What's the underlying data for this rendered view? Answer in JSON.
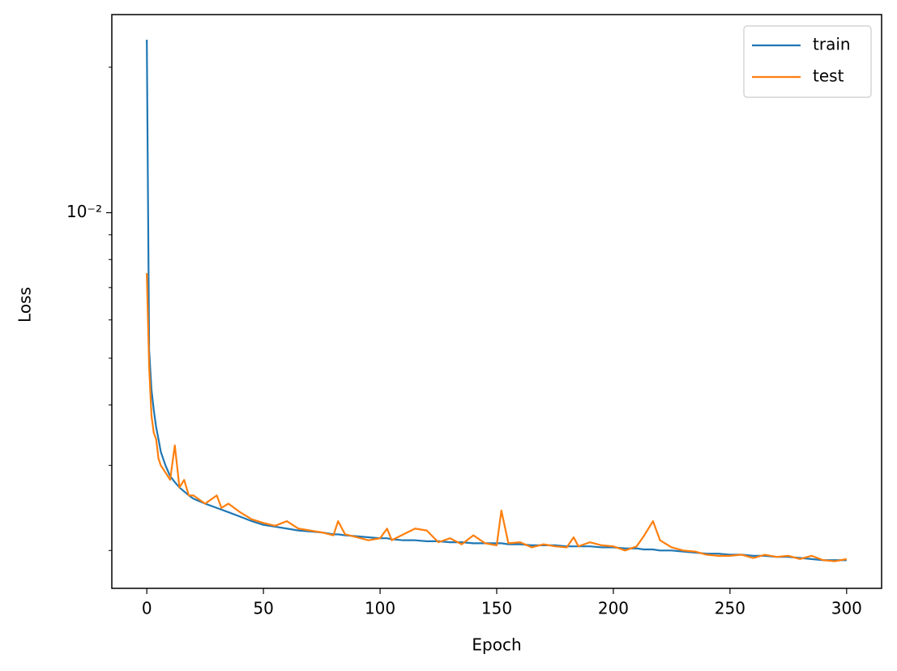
{
  "chart_data": {
    "type": "line",
    "xlabel": "Epoch",
    "ylabel": "Loss",
    "ylog": true,
    "legend": "upper right",
    "xlim": [
      -15,
      315
    ],
    "xticks": [
      0,
      50,
      100,
      150,
      200,
      250,
      300
    ],
    "ylim": [
      0.00167,
      0.0257
    ],
    "yticks": [
      {
        "value": 0.01,
        "label": "10⁻²"
      }
    ],
    "yminorticks": [
      0.002,
      0.003,
      0.004,
      0.005,
      0.006,
      0.007,
      0.008,
      0.009,
      0.02
    ],
    "x": [
      0,
      1,
      2,
      3,
      4,
      5,
      6,
      8,
      10,
      12,
      14,
      16,
      18,
      20,
      25,
      30,
      32,
      35,
      40,
      45,
      50,
      55,
      60,
      65,
      70,
      75,
      80,
      82,
      85,
      90,
      95,
      100,
      103,
      105,
      110,
      115,
      120,
      125,
      130,
      135,
      140,
      145,
      150,
      152,
      155,
      160,
      165,
      170,
      175,
      180,
      183,
      185,
      190,
      195,
      200,
      205,
      210,
      213,
      217,
      220,
      225,
      230,
      235,
      240,
      245,
      250,
      255,
      260,
      265,
      270,
      275,
      280,
      285,
      290,
      295,
      300
    ],
    "series": [
      {
        "name": "train",
        "color": "#1f77b4",
        "values": [
          0.0228,
          0.0052,
          0.0043,
          0.0039,
          0.0036,
          0.0034,
          0.0032,
          0.003,
          0.00285,
          0.00277,
          0.0027,
          0.00265,
          0.0026,
          0.00256,
          0.0025,
          0.00245,
          0.00243,
          0.0024,
          0.00235,
          0.0023,
          0.00226,
          0.00224,
          0.00222,
          0.0022,
          0.00219,
          0.00218,
          0.00216,
          0.00216,
          0.00215,
          0.00214,
          0.00213,
          0.00212,
          0.00212,
          0.00211,
          0.0021,
          0.0021,
          0.00209,
          0.00209,
          0.00208,
          0.00208,
          0.00207,
          0.00207,
          0.00207,
          0.00207,
          0.00206,
          0.00206,
          0.00205,
          0.00205,
          0.00205,
          0.00204,
          0.00204,
          0.00204,
          0.00204,
          0.00203,
          0.00203,
          0.00202,
          0.00202,
          0.00201,
          0.00201,
          0.002,
          0.002,
          0.00199,
          0.00198,
          0.00197,
          0.00197,
          0.00196,
          0.00196,
          0.00195,
          0.00195,
          0.00194,
          0.00194,
          0.00193,
          0.00192,
          0.00191,
          0.00191,
          0.00191
        ]
      },
      {
        "name": "test",
        "color": "#ff7f0e",
        "values": [
          0.0075,
          0.0048,
          0.0038,
          0.0035,
          0.0034,
          0.0031,
          0.003,
          0.0029,
          0.0028,
          0.0033,
          0.0027,
          0.0028,
          0.0026,
          0.0026,
          0.0025,
          0.0026,
          0.00245,
          0.0025,
          0.0024,
          0.00232,
          0.00228,
          0.00225,
          0.0023,
          0.00222,
          0.0022,
          0.00218,
          0.00215,
          0.0023,
          0.00216,
          0.00213,
          0.0021,
          0.00212,
          0.00222,
          0.0021,
          0.00216,
          0.00222,
          0.0022,
          0.00208,
          0.00212,
          0.00206,
          0.00215,
          0.00207,
          0.00205,
          0.00242,
          0.00207,
          0.00208,
          0.00203,
          0.00206,
          0.00204,
          0.00203,
          0.00213,
          0.00204,
          0.00208,
          0.00205,
          0.00204,
          0.002,
          0.00204,
          0.00214,
          0.0023,
          0.0021,
          0.00203,
          0.002,
          0.00199,
          0.00196,
          0.00195,
          0.00195,
          0.00196,
          0.00193,
          0.00196,
          0.00194,
          0.00195,
          0.00192,
          0.00195,
          0.00191,
          0.0019,
          0.00192
        ]
      }
    ]
  }
}
